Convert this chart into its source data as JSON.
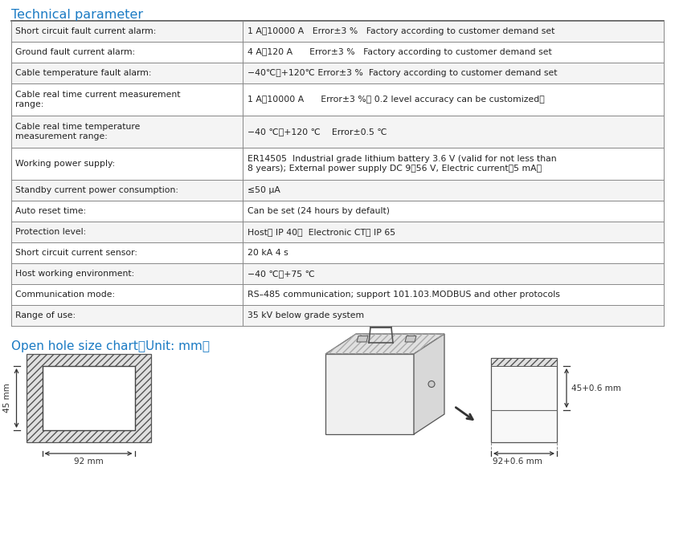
{
  "title1": "Technical parameter",
  "title2": "Open hole size chart（Unit: mm）",
  "title_color": "#1B7BC4",
  "table_rows": [
    [
      "Short circuit fault current alarm:",
      "1 A～10000 A   Error±3 %   Factory according to customer demand set"
    ],
    [
      "Ground fault current alarm:",
      "4 A～120 A      Error±3 %   Factory according to customer demand set"
    ],
    [
      "Cable temperature fault alarm:",
      "−40℃～+120℃ Error±3 %  Factory according to customer demand set"
    ],
    [
      "Cable real time current measurement\nrange:",
      "1 A～10000 A      Error±3 %（ 0.2 level accuracy can be customized）"
    ],
    [
      "Cable real time temperature\nmeasurement range:",
      "−40 ℃～+120 ℃    Error±0.5 ℃"
    ],
    [
      "Working power supply:",
      "ER14505  Industrial grade lithium battery 3.6 V (valid for not less than\n8 years); External power supply DC 9～56 V, Electric current＜5 mA。"
    ],
    [
      "Standby current power consumption:",
      "≤50 μA"
    ],
    [
      "Auto reset time:",
      "Can be set (24 hours by default)"
    ],
    [
      "Protection level:",
      "Host； IP 40；  Electronic CT； IP 65"
    ],
    [
      "Short circuit current sensor:",
      "20 kA 4 s"
    ],
    [
      "Host working environment:",
      "−40 ℃～+75 ℃"
    ],
    [
      "Communication mode:",
      "RS–485 communication; support 101.103.MODBUS and other protocols"
    ],
    [
      "Range of use:",
      "35 kV below grade system"
    ]
  ],
  "col_split": 0.355,
  "bg_color": "#ffffff",
  "border_color": "#888888",
  "text_color": "#222222",
  "row_bg_even": "#f4f4f4",
  "row_bg_odd": "#ffffff"
}
